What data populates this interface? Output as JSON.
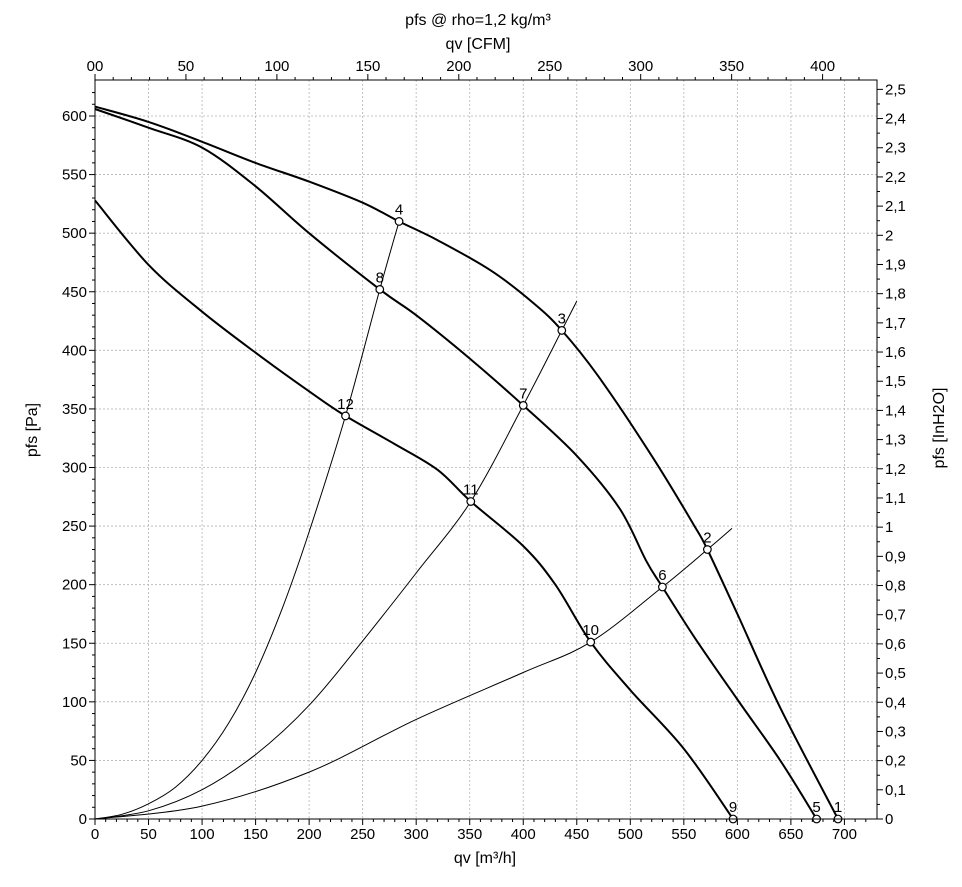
{
  "chart_data": {
    "type": "line",
    "title": "pfs @ rho=1,2 kg/m³",
    "xlabel": "qv [m³/h]",
    "x2label": "qv [CFM]",
    "ylabel": "pfs [Pa]",
    "y2label": "pfs [InH2O]",
    "xlim": [
      0,
      730
    ],
    "ylim": [
      0,
      625
    ],
    "x_ticks": [
      0,
      50,
      100,
      150,
      200,
      250,
      300,
      350,
      400,
      450,
      500,
      550,
      600,
      650,
      700
    ],
    "x_tick_labels": [
      "0",
      "50",
      "100",
      "150",
      "200",
      "250",
      "300",
      "350",
      "400",
      "450",
      "500",
      "550",
      "600",
      "650",
      "700"
    ],
    "x2_ticks_cfm": [
      0,
      50,
      100,
      150,
      200,
      250,
      300,
      350,
      400
    ],
    "x2_tick_labels": [
      "00",
      "50",
      "100",
      "150",
      "200",
      "250",
      "300",
      "350",
      "400"
    ],
    "y_ticks": [
      0,
      50,
      100,
      150,
      200,
      250,
      300,
      350,
      400,
      450,
      500,
      550,
      600
    ],
    "y_tick_labels": [
      "0",
      "50",
      "100",
      "150",
      "200",
      "250",
      "300",
      "350",
      "400",
      "450",
      "500",
      "550",
      "600"
    ],
    "y2_ticks_inh2o": [
      0,
      0.1,
      0.2,
      0.3,
      0.4,
      0.5,
      0.6,
      0.7,
      0.8,
      0.9,
      1.0,
      1.1,
      1.2,
      1.3,
      1.4,
      1.5,
      1.6,
      1.7,
      1.8,
      1.9,
      2.0,
      2.1,
      2.2,
      2.3,
      2.4,
      2.5
    ],
    "y2_tick_labels": [
      "0",
      "0,1",
      "0,2",
      "0,3",
      "0,4",
      "0,5",
      "0,6",
      "0,7",
      "0,8",
      "0,9",
      "1",
      "1,1",
      "1,2",
      "1,3",
      "1,4",
      "1,5",
      "1,6",
      "1,7",
      "1,8",
      "1,9",
      "2",
      "2,1",
      "2,2",
      "2,3",
      "2,4",
      "2,5"
    ],
    "grid": true,
    "fan_curves": [
      {
        "points": [
          [
            0,
            608
          ],
          [
            50,
            595
          ],
          [
            100,
            578
          ],
          [
            150,
            560
          ],
          [
            200,
            544
          ],
          [
            250,
            526
          ],
          [
            284,
            510
          ],
          [
            320,
            494
          ],
          [
            370,
            468
          ],
          [
            410,
            440
          ],
          [
            436,
            417
          ],
          [
            470,
            378
          ],
          [
            520,
            310
          ],
          [
            560,
            250
          ],
          [
            572,
            230
          ],
          [
            600,
            175
          ],
          [
            640,
            95
          ],
          [
            694,
            0
          ]
        ]
      },
      {
        "points": [
          [
            0,
            606
          ],
          [
            50,
            590
          ],
          [
            100,
            573
          ],
          [
            150,
            540
          ],
          [
            200,
            500
          ],
          [
            266,
            452
          ],
          [
            300,
            430
          ],
          [
            350,
            393
          ],
          [
            400,
            353
          ],
          [
            450,
            310
          ],
          [
            490,
            265
          ],
          [
            515,
            220
          ],
          [
            530,
            198
          ],
          [
            560,
            155
          ],
          [
            600,
            102
          ],
          [
            640,
            50
          ],
          [
            674,
            0
          ]
        ]
      },
      {
        "points": [
          [
            0,
            528
          ],
          [
            50,
            473
          ],
          [
            100,
            433
          ],
          [
            150,
            398
          ],
          [
            200,
            365
          ],
          [
            234,
            344
          ],
          [
            280,
            320
          ],
          [
            320,
            298
          ],
          [
            351,
            271
          ],
          [
            400,
            233
          ],
          [
            430,
            200
          ],
          [
            463,
            151
          ],
          [
            500,
            110
          ],
          [
            550,
            60
          ],
          [
            596,
            0
          ]
        ]
      }
    ],
    "system_curves": [
      {
        "points": [
          [
            0,
            0
          ],
          [
            25,
            4
          ],
          [
            50,
            13
          ],
          [
            75,
            27
          ],
          [
            100,
            50
          ],
          [
            125,
            82
          ],
          [
            150,
            125
          ],
          [
            175,
            180
          ],
          [
            200,
            245
          ],
          [
            234,
            344
          ],
          [
            266,
            452
          ],
          [
            284,
            510
          ]
        ]
      },
      {
        "points": [
          [
            0,
            0
          ],
          [
            50,
            7
          ],
          [
            100,
            25
          ],
          [
            150,
            55
          ],
          [
            200,
            97
          ],
          [
            250,
            152
          ],
          [
            300,
            210
          ],
          [
            351,
            271
          ],
          [
            400,
            353
          ],
          [
            436,
            417
          ],
          [
            450,
            442
          ]
        ]
      },
      {
        "points": [
          [
            0,
            0
          ],
          [
            100,
            11
          ],
          [
            200,
            40
          ],
          [
            300,
            85
          ],
          [
            400,
            125
          ],
          [
            463,
            151
          ],
          [
            530,
            198
          ],
          [
            572,
            230
          ],
          [
            595,
            248
          ]
        ]
      }
    ],
    "operating_points": [
      {
        "label": "1",
        "x": 694,
        "y": 0
      },
      {
        "label": "2",
        "x": 572,
        "y": 230
      },
      {
        "label": "3",
        "x": 436,
        "y": 417
      },
      {
        "label": "4",
        "x": 284,
        "y": 510
      },
      {
        "label": "5",
        "x": 674,
        "y": 0
      },
      {
        "label": "6",
        "x": 530,
        "y": 198
      },
      {
        "label": "7",
        "x": 400,
        "y": 353
      },
      {
        "label": "8",
        "x": 266,
        "y": 452
      },
      {
        "label": "9",
        "x": 596,
        "y": 0
      },
      {
        "label": "10",
        "x": 463,
        "y": 151
      },
      {
        "label": "11",
        "x": 351,
        "y": 271
      },
      {
        "label": "12",
        "x": 234,
        "y": 344
      }
    ]
  },
  "colors": {
    "line": "#000000",
    "grid": "#b4b4b4",
    "frame": "#000000"
  }
}
